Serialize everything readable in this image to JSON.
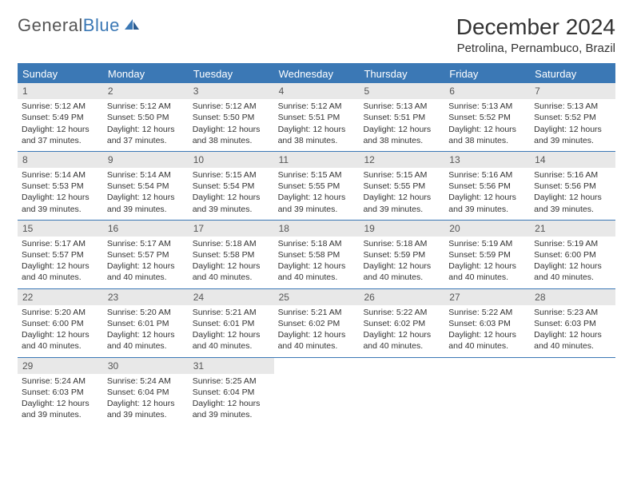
{
  "logo": {
    "text_gray": "General",
    "text_blue": "Blue"
  },
  "title": "December 2024",
  "location": "Petrolina, Pernambuco, Brazil",
  "colors": {
    "header_bg": "#3b78b5",
    "header_text": "#ffffff",
    "daynum_bg": "#e8e8e8",
    "row_border": "#3b78b5",
    "body_text": "#333333",
    "page_bg": "#ffffff"
  },
  "typography": {
    "title_fontsize": 28,
    "location_fontsize": 15,
    "weekday_fontsize": 13,
    "daynum_fontsize": 12,
    "body_fontsize": 10.5
  },
  "weekdays": [
    "Sunday",
    "Monday",
    "Tuesday",
    "Wednesday",
    "Thursday",
    "Friday",
    "Saturday"
  ],
  "labels": {
    "sunrise": "Sunrise:",
    "sunset": "Sunset:",
    "daylight": "Daylight:"
  },
  "days": [
    {
      "n": 1,
      "sunrise": "5:12 AM",
      "sunset": "5:49 PM",
      "daylight": "12 hours and 37 minutes."
    },
    {
      "n": 2,
      "sunrise": "5:12 AM",
      "sunset": "5:50 PM",
      "daylight": "12 hours and 37 minutes."
    },
    {
      "n": 3,
      "sunrise": "5:12 AM",
      "sunset": "5:50 PM",
      "daylight": "12 hours and 38 minutes."
    },
    {
      "n": 4,
      "sunrise": "5:12 AM",
      "sunset": "5:51 PM",
      "daylight": "12 hours and 38 minutes."
    },
    {
      "n": 5,
      "sunrise": "5:13 AM",
      "sunset": "5:51 PM",
      "daylight": "12 hours and 38 minutes."
    },
    {
      "n": 6,
      "sunrise": "5:13 AM",
      "sunset": "5:52 PM",
      "daylight": "12 hours and 38 minutes."
    },
    {
      "n": 7,
      "sunrise": "5:13 AM",
      "sunset": "5:52 PM",
      "daylight": "12 hours and 39 minutes."
    },
    {
      "n": 8,
      "sunrise": "5:14 AM",
      "sunset": "5:53 PM",
      "daylight": "12 hours and 39 minutes."
    },
    {
      "n": 9,
      "sunrise": "5:14 AM",
      "sunset": "5:54 PM",
      "daylight": "12 hours and 39 minutes."
    },
    {
      "n": 10,
      "sunrise": "5:15 AM",
      "sunset": "5:54 PM",
      "daylight": "12 hours and 39 minutes."
    },
    {
      "n": 11,
      "sunrise": "5:15 AM",
      "sunset": "5:55 PM",
      "daylight": "12 hours and 39 minutes."
    },
    {
      "n": 12,
      "sunrise": "5:15 AM",
      "sunset": "5:55 PM",
      "daylight": "12 hours and 39 minutes."
    },
    {
      "n": 13,
      "sunrise": "5:16 AM",
      "sunset": "5:56 PM",
      "daylight": "12 hours and 39 minutes."
    },
    {
      "n": 14,
      "sunrise": "5:16 AM",
      "sunset": "5:56 PM",
      "daylight": "12 hours and 39 minutes."
    },
    {
      "n": 15,
      "sunrise": "5:17 AM",
      "sunset": "5:57 PM",
      "daylight": "12 hours and 40 minutes."
    },
    {
      "n": 16,
      "sunrise": "5:17 AM",
      "sunset": "5:57 PM",
      "daylight": "12 hours and 40 minutes."
    },
    {
      "n": 17,
      "sunrise": "5:18 AM",
      "sunset": "5:58 PM",
      "daylight": "12 hours and 40 minutes."
    },
    {
      "n": 18,
      "sunrise": "5:18 AM",
      "sunset": "5:58 PM",
      "daylight": "12 hours and 40 minutes."
    },
    {
      "n": 19,
      "sunrise": "5:18 AM",
      "sunset": "5:59 PM",
      "daylight": "12 hours and 40 minutes."
    },
    {
      "n": 20,
      "sunrise": "5:19 AM",
      "sunset": "5:59 PM",
      "daylight": "12 hours and 40 minutes."
    },
    {
      "n": 21,
      "sunrise": "5:19 AM",
      "sunset": "6:00 PM",
      "daylight": "12 hours and 40 minutes."
    },
    {
      "n": 22,
      "sunrise": "5:20 AM",
      "sunset": "6:00 PM",
      "daylight": "12 hours and 40 minutes."
    },
    {
      "n": 23,
      "sunrise": "5:20 AM",
      "sunset": "6:01 PM",
      "daylight": "12 hours and 40 minutes."
    },
    {
      "n": 24,
      "sunrise": "5:21 AM",
      "sunset": "6:01 PM",
      "daylight": "12 hours and 40 minutes."
    },
    {
      "n": 25,
      "sunrise": "5:21 AM",
      "sunset": "6:02 PM",
      "daylight": "12 hours and 40 minutes."
    },
    {
      "n": 26,
      "sunrise": "5:22 AM",
      "sunset": "6:02 PM",
      "daylight": "12 hours and 40 minutes."
    },
    {
      "n": 27,
      "sunrise": "5:22 AM",
      "sunset": "6:03 PM",
      "daylight": "12 hours and 40 minutes."
    },
    {
      "n": 28,
      "sunrise": "5:23 AM",
      "sunset": "6:03 PM",
      "daylight": "12 hours and 40 minutes."
    },
    {
      "n": 29,
      "sunrise": "5:24 AM",
      "sunset": "6:03 PM",
      "daylight": "12 hours and 39 minutes."
    },
    {
      "n": 30,
      "sunrise": "5:24 AM",
      "sunset": "6:04 PM",
      "daylight": "12 hours and 39 minutes."
    },
    {
      "n": 31,
      "sunrise": "5:25 AM",
      "sunset": "6:04 PM",
      "daylight": "12 hours and 39 minutes."
    }
  ],
  "layout": {
    "first_weekday_index": 0,
    "weeks": 5,
    "columns": 7
  }
}
